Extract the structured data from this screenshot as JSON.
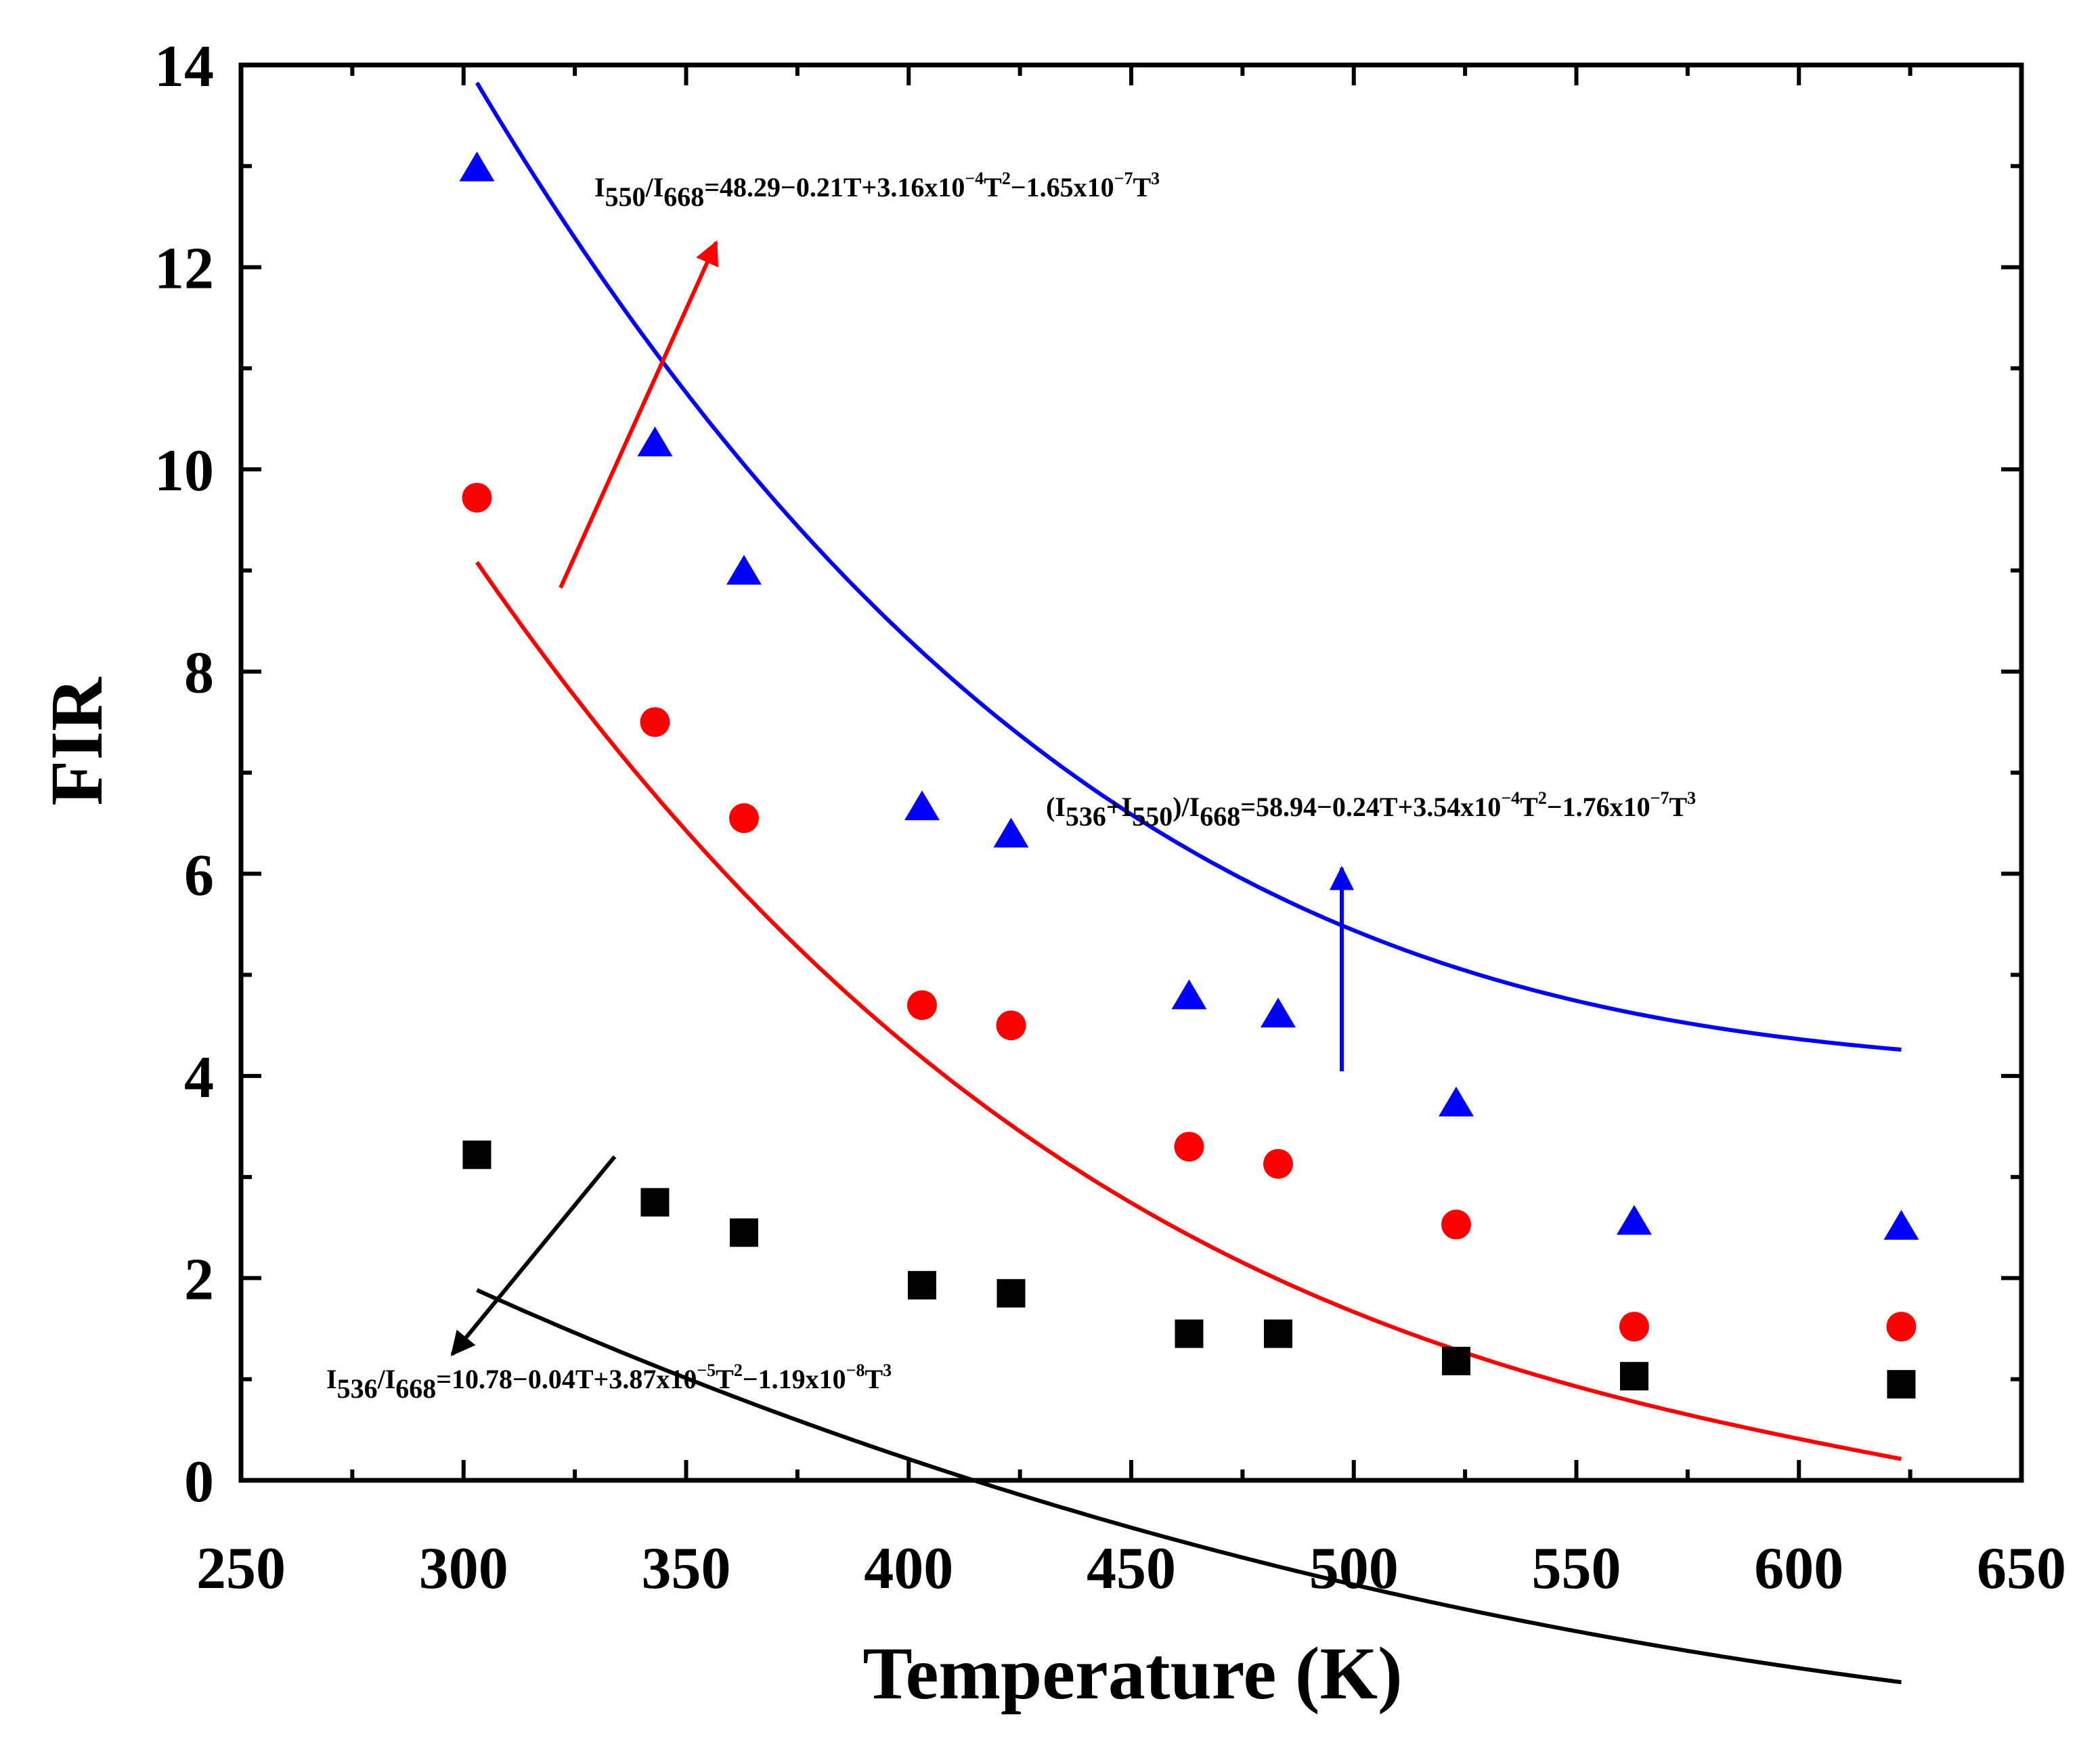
{
  "chart_data": {
    "type": "scatter",
    "title": "",
    "xlabel": "Temperature (K)",
    "ylabel": "FIR",
    "xlim": [
      250,
      650
    ],
    "ylim": [
      0,
      14
    ],
    "xticks": [
      250,
      300,
      350,
      400,
      450,
      500,
      550,
      600,
      650
    ],
    "yticks": [
      0,
      2,
      4,
      6,
      8,
      10,
      12,
      14
    ],
    "grid": false,
    "series": [
      {
        "name": "(I536+I550)/I668",
        "color": "#0000ff",
        "marker": "triangle",
        "x": [
          303,
          343,
          363,
          403,
          423,
          463,
          483,
          523,
          563,
          623
        ],
        "y": [
          12.97,
          10.25,
          8.98,
          6.65,
          6.38,
          4.78,
          4.6,
          3.72,
          2.55,
          2.5
        ],
        "fit": [
          58.94,
          -0.24,
          0.000354,
          -1.76e-07
        ]
      },
      {
        "name": "I550/I668",
        "color": "#ff0000",
        "marker": "circle",
        "x": [
          303,
          343,
          363,
          403,
          423,
          463,
          483,
          523,
          563,
          623
        ],
        "y": [
          9.72,
          7.5,
          6.55,
          4.7,
          4.5,
          3.3,
          3.13,
          2.53,
          1.52,
          1.52
        ],
        "fit": [
          48.29,
          -0.21,
          0.000316,
          -1.65e-07
        ]
      },
      {
        "name": "I536/I668",
        "color": "#000000",
        "marker": "square",
        "x": [
          303,
          343,
          363,
          403,
          423,
          463,
          483,
          523,
          563,
          623
        ],
        "y": [
          3.22,
          2.75,
          2.45,
          1.93,
          1.85,
          1.45,
          1.45,
          1.18,
          1.03,
          0.95
        ],
        "fit": [
          10.78,
          -0.04,
          3.87e-05,
          -1.19e-08
        ]
      }
    ],
    "annotations": [
      {
        "id": "red",
        "color": "#ff0000",
        "parts": [
          {
            "t": "I"
          },
          {
            "t": "550",
            "s": "sub"
          },
          {
            "t": "/I"
          },
          {
            "t": "668",
            "s": "sub"
          },
          {
            "t": "=48.29−0.21T+3.16x10"
          },
          {
            "t": "−4",
            "s": "sup"
          },
          {
            "t": "T"
          },
          {
            "t": "2",
            "s": "sup"
          },
          {
            "t": "−1.65x10"
          },
          {
            "t": "−7",
            "s": "sup"
          },
          {
            "t": "T"
          },
          {
            "t": "3",
            "s": "sup"
          }
        ]
      },
      {
        "id": "blue",
        "color": "#0000ff",
        "parts": [
          {
            "t": "(I"
          },
          {
            "t": "536",
            "s": "sub"
          },
          {
            "t": "+I"
          },
          {
            "t": "550",
            "s": "sub"
          },
          {
            "t": ")/I"
          },
          {
            "t": "668",
            "s": "sub"
          },
          {
            "t": "=58.94−0.24T+3.54x10"
          },
          {
            "t": "−4",
            "s": "sup"
          },
          {
            "t": "T"
          },
          {
            "t": "2",
            "s": "sup"
          },
          {
            "t": "−1.76x10"
          },
          {
            "t": "−7",
            "s": "sup"
          },
          {
            "t": "T"
          },
          {
            "t": "3",
            "s": "sup"
          }
        ]
      },
      {
        "id": "black",
        "color": "#000000",
        "parts": [
          {
            "t": "I"
          },
          {
            "t": "536",
            "s": "sub"
          },
          {
            "t": "/I"
          },
          {
            "t": "668",
            "s": "sub"
          },
          {
            "t": "=10.78−0.04T+3.87x10"
          },
          {
            "t": "−5",
            "s": "sup"
          },
          {
            "t": "T"
          },
          {
            "t": "2",
            "s": "sup"
          },
          {
            "t": "−1.19x10"
          },
          {
            "t": "−8",
            "s": "sup"
          },
          {
            "t": "T"
          },
          {
            "t": "3",
            "s": "sup"
          }
        ]
      }
    ]
  }
}
